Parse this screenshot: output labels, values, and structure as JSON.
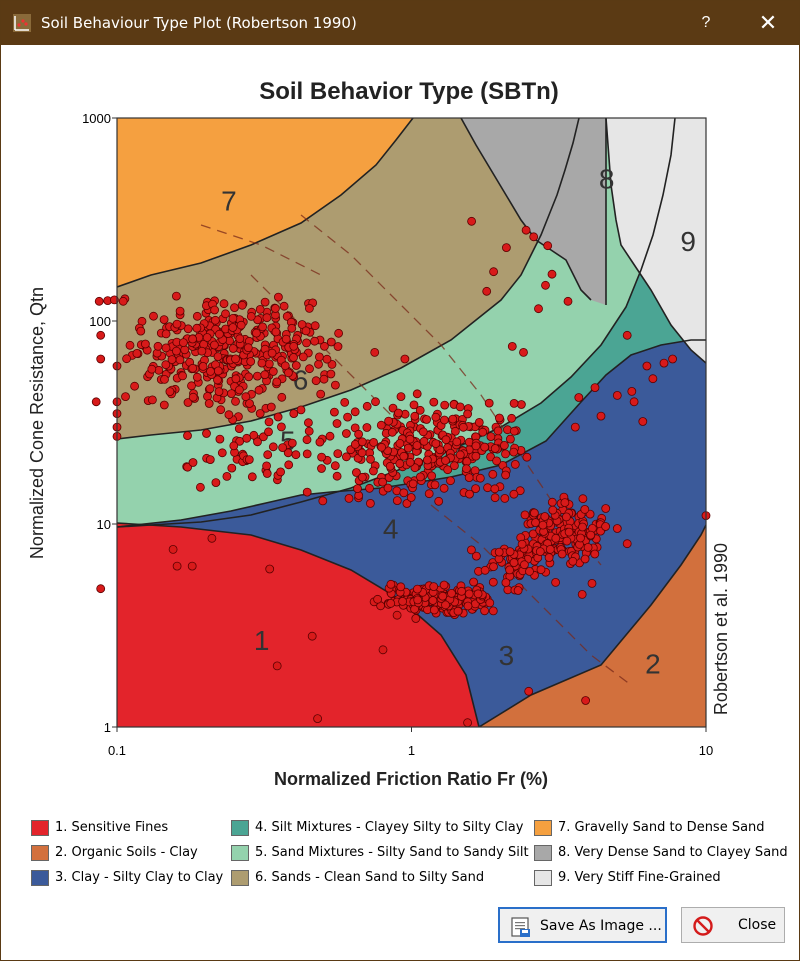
{
  "window": {
    "title": "Soil Behaviour Type Plot (Robertson 1990)",
    "help_label": "?",
    "close_label": "✕"
  },
  "buttons": {
    "save_label": "Save As Image ...",
    "close_label": "Close"
  },
  "colors": {
    "zone1": "#e3242b",
    "zone2": "#d2703d",
    "zone3": "#3b5a9a",
    "zone4": "#4ba594",
    "zone5": "#94d2ad",
    "zone6": "#ad9c70",
    "zone7": "#f5a040",
    "zone8": "#a8a8a8",
    "zone9": "#e6e6e6",
    "points": "#d81a1a"
  },
  "legend": [
    {
      "label": "1. Sensitive Fines",
      "color": "#e3242b"
    },
    {
      "label": "2. Organic Soils - Clay",
      "color": "#d2703d"
    },
    {
      "label": "3. Clay - Silty Clay to Clay",
      "color": "#3b5a9a"
    },
    {
      "label": "4. Silt Mixtures - Clayey Silty to Silty Clay",
      "color": "#4ba594"
    },
    {
      "label": "5. Sand Mixtures - Silty Sand to Sandy Silt",
      "color": "#94d2ad"
    },
    {
      "label": "6. Sands - Clean Sand to Silty Sand",
      "color": "#ad9c70"
    },
    {
      "label": "7. Gravelly Sand to Dense Sand",
      "color": "#f5a040"
    },
    {
      "label": "8. Very Dense Sand to Clayey Sand",
      "color": "#a8a8a8"
    },
    {
      "label": "9. Very Stiff Fine-Grained",
      "color": "#e6e6e6"
    }
  ],
  "chart_data": {
    "type": "scatter",
    "title": "Soil Behavior Type (SBTn)",
    "xlabel": "Normalized Friction Ratio Fr (%)",
    "ylabel": "Normalized Cone Resistance, Qtn",
    "side_label": "Robertson et al. 1990",
    "x_scale": "log",
    "y_scale": "log",
    "xlim": [
      0.1,
      10
    ],
    "ylim": [
      1,
      1000
    ],
    "x_ticks": [
      {
        "value": 0.1,
        "label": "0.1"
      },
      {
        "value": 1,
        "label": "1"
      },
      {
        "value": 10,
        "label": "10"
      }
    ],
    "y_ticks": [
      {
        "value": 1,
        "label": "1"
      },
      {
        "value": 10,
        "label": "10"
      },
      {
        "value": 100,
        "label": "100"
      },
      {
        "value": 1000,
        "label": "1000"
      }
    ],
    "zone_labels": [
      {
        "text": "1",
        "x": 0.31,
        "y": 2.6
      },
      {
        "text": "2",
        "x": 6.6,
        "y": 2.0
      },
      {
        "text": "3",
        "x": 2.1,
        "y": 2.2
      },
      {
        "text": "4",
        "x": 0.85,
        "y": 9.2
      },
      {
        "text": "5",
        "x": 0.38,
        "y": 25
      },
      {
        "text": "6",
        "x": 0.42,
        "y": 50
      },
      {
        "text": "7",
        "x": 0.24,
        "y": 380
      },
      {
        "text": "8",
        "x": 4.6,
        "y": 490
      },
      {
        "text": "9",
        "x": 8.7,
        "y": 240
      }
    ],
    "clusters": [
      {
        "name": "",
        "x_range": [
          0.1,
          0.6
        ],
        "y_range": [
          35,
          140
        ],
        "count": 380
      },
      {
        "name": "",
        "x_range": [
          0.5,
          2.8
        ],
        "y_range": [
          12,
          45
        ],
        "count": 300
      },
      {
        "name": "",
        "x_range": [
          2.2,
          5.0
        ],
        "y_range": [
          6,
          14
        ],
        "count": 180
      },
      {
        "name": "",
        "x_range": [
          0.72,
          2.0
        ],
        "y_range": [
          3.4,
          5.2
        ],
        "count": 200
      },
      {
        "name": "",
        "x_range": [
          0.15,
          0.6
        ],
        "y_range": [
          14,
          45
        ],
        "count": 70
      },
      {
        "name": "",
        "x_range": [
          1.5,
          3.6
        ],
        "y_range": [
          4.5,
          8
        ],
        "count": 60
      }
    ],
    "scattered_points": [
      {
        "x": 0.085,
        "y": 40
      },
      {
        "x": 0.088,
        "y": 4.8
      },
      {
        "x": 0.087,
        "y": 125
      },
      {
        "x": 0.088,
        "y": 85
      },
      {
        "x": 0.088,
        "y": 65
      },
      {
        "x": 0.093,
        "y": 126
      },
      {
        "x": 0.098,
        "y": 127
      },
      {
        "x": 0.105,
        "y": 125
      },
      {
        "x": 0.1,
        "y": 60
      },
      {
        "x": 0.1,
        "y": 40
      },
      {
        "x": 0.1,
        "y": 35
      },
      {
        "x": 0.1,
        "y": 30
      },
      {
        "x": 0.1,
        "y": 27
      },
      {
        "x": 0.21,
        "y": 8.5
      },
      {
        "x": 0.155,
        "y": 7.5
      },
      {
        "x": 0.16,
        "y": 6.2
      },
      {
        "x": 0.18,
        "y": 6.2
      },
      {
        "x": 0.33,
        "y": 6.0
      },
      {
        "x": 0.35,
        "y": 2.0
      },
      {
        "x": 0.46,
        "y": 2.8
      },
      {
        "x": 0.48,
        "y": 1.1
      },
      {
        "x": 0.8,
        "y": 2.4
      },
      {
        "x": 1.55,
        "y": 1.05
      },
      {
        "x": 3.9,
        "y": 1.35
      },
      {
        "x": 2.5,
        "y": 1.5
      },
      {
        "x": 2.45,
        "y": 280
      },
      {
        "x": 2.6,
        "y": 260
      },
      {
        "x": 2.9,
        "y": 235
      },
      {
        "x": 2.1,
        "y": 230
      },
      {
        "x": 1.6,
        "y": 310
      },
      {
        "x": 3.0,
        "y": 170
      },
      {
        "x": 2.85,
        "y": 150
      },
      {
        "x": 3.4,
        "y": 125
      },
      {
        "x": 2.7,
        "y": 115
      },
      {
        "x": 1.8,
        "y": 140
      },
      {
        "x": 1.9,
        "y": 175
      },
      {
        "x": 7.7,
        "y": 65
      },
      {
        "x": 7.2,
        "y": 62
      },
      {
        "x": 6.3,
        "y": 60
      },
      {
        "x": 5.4,
        "y": 85
      },
      {
        "x": 5.6,
        "y": 45
      },
      {
        "x": 6.6,
        "y": 52
      },
      {
        "x": 5.0,
        "y": 43
      },
      {
        "x": 4.2,
        "y": 47
      },
      {
        "x": 5.7,
        "y": 40
      },
      {
        "x": 6.1,
        "y": 32
      },
      {
        "x": 3.7,
        "y": 42
      },
      {
        "x": 3.6,
        "y": 30
      },
      {
        "x": 4.4,
        "y": 34
      },
      {
        "x": 10,
        "y": 11
      },
      {
        "x": 5.0,
        "y": 9.5
      },
      {
        "x": 5.4,
        "y": 8.0
      },
      {
        "x": 4.1,
        "y": 5.1
      },
      {
        "x": 3.8,
        "y": 4.5
      },
      {
        "x": 2.2,
        "y": 75
      },
      {
        "x": 2.4,
        "y": 70
      },
      {
        "x": 0.75,
        "y": 70
      },
      {
        "x": 0.95,
        "y": 65
      },
      {
        "x": 0.72,
        "y": 15
      },
      {
        "x": 0.5,
        "y": 13
      }
    ]
  }
}
